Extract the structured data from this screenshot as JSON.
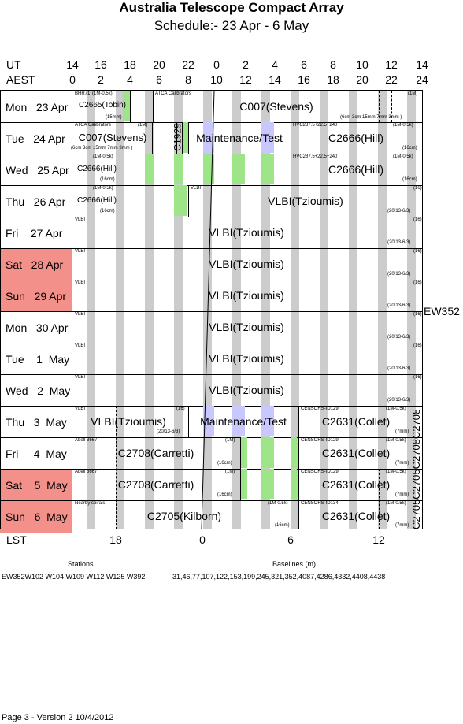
{
  "header": {
    "title": "Australia Telescope Compact Array",
    "subtitle": "Schedule:- 23 Apr - 6  May"
  },
  "axes": {
    "ut_label": "UT",
    "aest_label": "AEST",
    "lst_label": "LST",
    "ut_ticks": [
      "14",
      "16",
      "18",
      "20",
      "22",
      "0",
      "2",
      "4",
      "6",
      "8",
      "10",
      "12",
      "14"
    ],
    "aest_ticks": [
      "0",
      "2",
      "4",
      "6",
      "8",
      "10",
      "12",
      "14",
      "16",
      "18",
      "20",
      "22",
      "24"
    ],
    "lst_ticks": [
      "18",
      "0",
      "6",
      "12"
    ]
  },
  "days": [
    {
      "label": "Mon   23 Apr",
      "weekend": false
    },
    {
      "label": "Tue   24 Apr",
      "weekend": false
    },
    {
      "label": "Wed   25 Apr",
      "weekend": false
    },
    {
      "label": "Thu   26 Apr",
      "weekend": false
    },
    {
      "label": "Fri    27 Apr",
      "weekend": false
    },
    {
      "label": "Sat   28 Apr",
      "weekend": true
    },
    {
      "label": "Sun   29 Apr",
      "weekend": true
    },
    {
      "label": "Mon   30 Apr",
      "weekend": false
    },
    {
      "label": "Tue    1  May",
      "weekend": false
    },
    {
      "label": "Wed   2  May",
      "weekend": false
    },
    {
      "label": "Thu   3  May",
      "weekend": false
    },
    {
      "label": "Fri     4  May",
      "weekend": false
    },
    {
      "label": "Sat    5  May",
      "weekend": true
    },
    {
      "label": "Sun   6  May",
      "weekend": true
    }
  ],
  "projects": {
    "r0": {
      "s1": "BHR71",
      "s2": "(1M-0.5k)",
      "s3": "C2665(Tobin)",
      "s4": "(15mm)",
      "s5": "ATCA Calibrators",
      "s6": "C007(Stevens)",
      "s7": "(1M)",
      "s8": "(6cm 3cm 15mm 7mm 3mm )"
    },
    "r1": {
      "s1": "ATCA Calibrators",
      "s2": "(1M)",
      "s3": "C007(Stevens)",
      "s4": "(6cm 3cm 15mm 7mm 3mm )",
      "s5": "C1929",
      "s6": "Maintenance/Test",
      "s7": "HVC287.5+22.5+240",
      "s8": "(1M-0.5k)",
      "s9": "C2666(Hill)",
      "s10": "(16cm)"
    },
    "r2": {
      "s1": "(1M-0.5k)",
      "s2": "C2666(Hill)",
      "s3": "(16cm)",
      "s4": "HVC287.5+22.5+240",
      "s5": "(1M-0.5k)",
      "s6": "C2666(Hill)",
      "s7": "(16cm)"
    },
    "r3": {
      "s1": "(1M-0.5k)",
      "s2": "C2666(Hill)",
      "s3": "(16cm)",
      "s4": "VLBI",
      "s5": "VLBI(Tzioumis)",
      "s6": "(16)",
      "s7": "(20/13-6/3)"
    },
    "vlbi": {
      "s1": "VLBI",
      "s2": "VLBI(Tzioumis)",
      "s3": "(16)",
      "s4": "(20/13-6/3)"
    },
    "r10": {
      "s1": "VLBI",
      "s2": "(16)",
      "s3": "VLBI(Tzioumis)",
      "s4": "(20/13-6/3)",
      "s5": "Maintenance/Test",
      "s6": "CENSORS-ID129",
      "s7": "(1M-0.5k)",
      "s8": "C2631(Collet)",
      "s9": "(7mm)"
    },
    "r11": {
      "s1": "Abell 3667",
      "s2": "(1M)",
      "s3": "C2708(Carretti)",
      "s4": "(16cm)",
      "s5": "CENSORS-ID129",
      "s6": "(1M-0.5k)",
      "s7": "C2631(Collet)",
      "s8": "(7mm)"
    },
    "r12": {
      "s1": "Abell 3667",
      "s2": "(1M)",
      "s3": "C2708(Carretti)",
      "s4": "(16cm)",
      "s5": "CENSORS-ID129",
      "s6": "(1M-0.5k)",
      "s7": "C2631(Collet)",
      "s8": "(7mm)"
    },
    "r13": {
      "s1": "Nearby spirals",
      "s2": "(1M-0.5k)",
      "s3": "C2705(Kilborn)",
      "s4": "(16cm)",
      "s5": "CENSORS-ID134",
      "s6": "(1M-0.5k)",
      "s7": "C2631(Collet)",
      "s8": "(7mm)"
    }
  },
  "right_side": {
    "config": "EW352",
    "vertical": "C2705C2705C2708C2708"
  },
  "stations": {
    "heading": "Stations",
    "list": "EW352W102 W104 W109 W112 W125 W392"
  },
  "baselines": {
    "heading": "Baselines (m)",
    "list": "31,46,77,107,122,153,199,245,321,352,4087,4286,4332,4408,4438"
  },
  "footer": "Page 3 - Version 2  10/4/2012"
}
